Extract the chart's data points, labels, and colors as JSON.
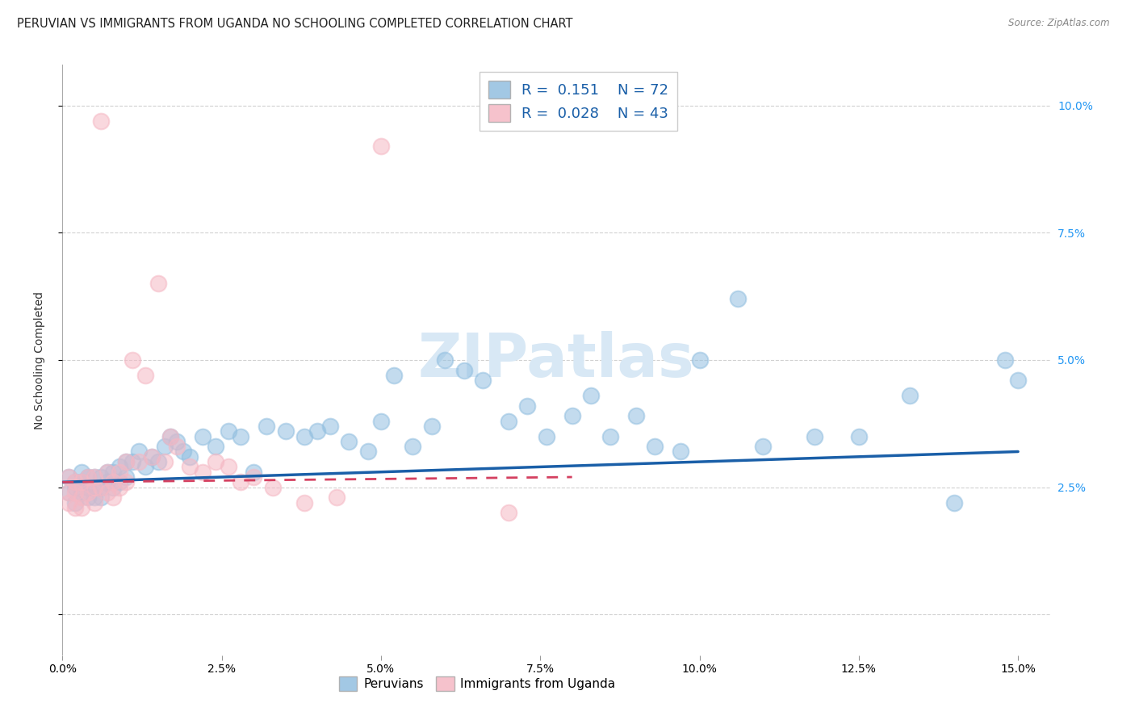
{
  "title": "PERUVIAN VS IMMIGRANTS FROM UGANDA NO SCHOOLING COMPLETED CORRELATION CHART",
  "source": "Source: ZipAtlas.com",
  "ylabel": "No Schooling Completed",
  "xlim": [
    0.0,
    0.155
  ],
  "ylim": [
    -0.008,
    0.108
  ],
  "xtick_positions": [
    0.0,
    0.025,
    0.05,
    0.075,
    0.1,
    0.125,
    0.15
  ],
  "xtick_labels": [
    "0.0%",
    "2.5%",
    "5.0%",
    "7.5%",
    "10.0%",
    "12.5%",
    "15.0%"
  ],
  "ytick_positions": [
    0.0,
    0.025,
    0.05,
    0.075,
    0.1
  ],
  "ytick_labels": [
    "",
    "2.5%",
    "5.0%",
    "7.5%",
    "10.0%"
  ],
  "watermark": "ZIPatlas",
  "legend_r1": "R =  0.151",
  "legend_n1": "N = 72",
  "legend_r2": "R =  0.028",
  "legend_n2": "N = 43",
  "blue_color": "#92bfe0",
  "pink_color": "#f5b8c4",
  "blue_line_color": "#1a5fa8",
  "pink_line_color": "#d44060",
  "grid_color": "#cccccc",
  "background_color": "#ffffff",
  "title_fontsize": 10.5,
  "tick_fontsize": 10,
  "label_fontsize": 10,
  "legend_fontsize": 12,
  "blue_trend": [
    0.0,
    0.15,
    0.026,
    0.032
  ],
  "pink_trend": [
    0.0,
    0.08,
    0.026,
    0.027
  ],
  "peru_x": [
    0.001,
    0.001,
    0.002,
    0.002,
    0.002,
    0.003,
    0.003,
    0.003,
    0.004,
    0.004,
    0.004,
    0.005,
    0.005,
    0.005,
    0.006,
    0.006,
    0.006,
    0.007,
    0.007,
    0.008,
    0.008,
    0.009,
    0.009,
    0.01,
    0.01,
    0.011,
    0.012,
    0.013,
    0.014,
    0.015,
    0.016,
    0.017,
    0.018,
    0.019,
    0.02,
    0.022,
    0.024,
    0.026,
    0.028,
    0.03,
    0.032,
    0.035,
    0.038,
    0.04,
    0.042,
    0.045,
    0.048,
    0.05,
    0.052,
    0.055,
    0.058,
    0.06,
    0.063,
    0.066,
    0.07,
    0.073,
    0.076,
    0.08,
    0.083,
    0.086,
    0.09,
    0.093,
    0.097,
    0.1,
    0.106,
    0.11,
    0.118,
    0.125,
    0.133,
    0.14,
    0.148,
    0.15
  ],
  "peru_y": [
    0.027,
    0.024,
    0.025,
    0.026,
    0.022,
    0.026,
    0.024,
    0.028,
    0.025,
    0.027,
    0.023,
    0.027,
    0.025,
    0.023,
    0.027,
    0.025,
    0.023,
    0.028,
    0.026,
    0.028,
    0.025,
    0.029,
    0.026,
    0.03,
    0.027,
    0.03,
    0.032,
    0.029,
    0.031,
    0.03,
    0.033,
    0.035,
    0.034,
    0.032,
    0.031,
    0.035,
    0.033,
    0.036,
    0.035,
    0.028,
    0.037,
    0.036,
    0.035,
    0.036,
    0.037,
    0.034,
    0.032,
    0.038,
    0.047,
    0.033,
    0.037,
    0.05,
    0.048,
    0.046,
    0.038,
    0.041,
    0.035,
    0.039,
    0.043,
    0.035,
    0.039,
    0.033,
    0.032,
    0.05,
    0.062,
    0.033,
    0.035,
    0.035,
    0.043,
    0.022,
    0.05,
    0.046
  ],
  "uganda_x": [
    0.001,
    0.001,
    0.001,
    0.002,
    0.002,
    0.002,
    0.003,
    0.003,
    0.003,
    0.004,
    0.004,
    0.005,
    0.005,
    0.005,
    0.006,
    0.006,
    0.007,
    0.007,
    0.008,
    0.008,
    0.009,
    0.009,
    0.01,
    0.01,
    0.011,
    0.012,
    0.013,
    0.014,
    0.015,
    0.016,
    0.017,
    0.018,
    0.02,
    0.022,
    0.024,
    0.026,
    0.028,
    0.03,
    0.033,
    0.038,
    0.043,
    0.05,
    0.07
  ],
  "uganda_y": [
    0.027,
    0.024,
    0.022,
    0.026,
    0.024,
    0.021,
    0.026,
    0.023,
    0.021,
    0.027,
    0.024,
    0.027,
    0.025,
    0.022,
    0.097,
    0.025,
    0.028,
    0.024,
    0.026,
    0.023,
    0.028,
    0.025,
    0.03,
    0.026,
    0.05,
    0.03,
    0.047,
    0.031,
    0.065,
    0.03,
    0.035,
    0.033,
    0.029,
    0.028,
    0.03,
    0.029,
    0.026,
    0.027,
    0.025,
    0.022,
    0.023,
    0.092,
    0.02
  ]
}
